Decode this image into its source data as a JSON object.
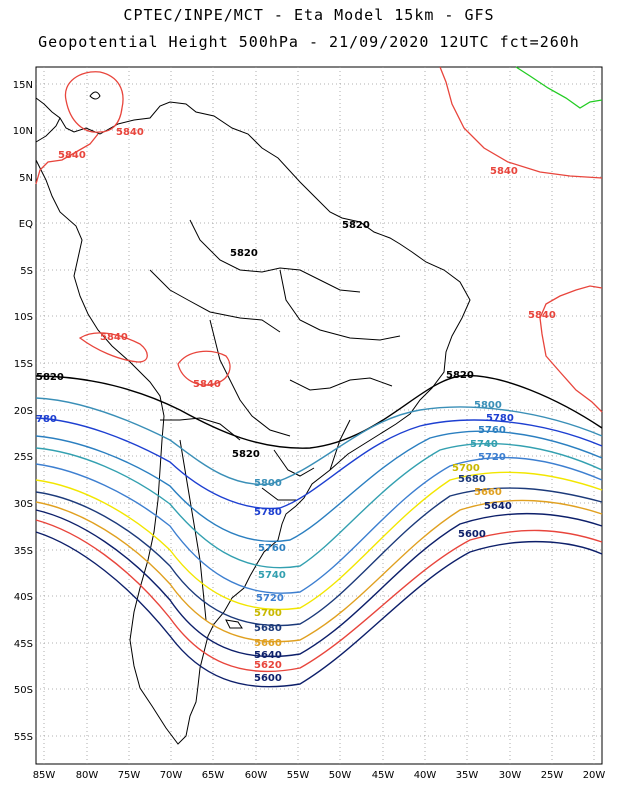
{
  "header": {
    "line1": "CPTEC/INPE/MCT -  Eta Model 15km - GFS",
    "line2": "Geopotential Height 500hPa - 21/09/2020 12UTC fct=260h"
  },
  "axes": {
    "lat_labels": [
      "15N",
      "10N",
      "5N",
      "EQ",
      "5S",
      "10S",
      "15S",
      "20S",
      "25S",
      "30S",
      "35S",
      "40S",
      "45S",
      "50S",
      "55S"
    ],
    "lon_labels": [
      "85W",
      "80W",
      "75W",
      "70W",
      "65W",
      "60W",
      "55W",
      "50W",
      "45W",
      "40W",
      "35W",
      "30W",
      "25W",
      "20W"
    ]
  },
  "colors": {
    "c5840": "#e8453c",
    "c5820": "#000000",
    "c5800": "#3a8fb7",
    "c5780": "#1d3fd1",
    "c5760": "#2b7fc0",
    "c5740": "#33a0b0",
    "c5720": "#3d7fd0",
    "c5700": "#f2e600",
    "c5680": "#1c3a7a",
    "c5660": "#e0a020",
    "c5640": "#0d1f6a",
    "c5620": "#e8453c",
    "c5600": "#0d1f6a",
    "green": "#22cc22"
  },
  "contour_labels": [
    {
      "text": "5840",
      "color": "#e8453c"
    },
    {
      "text": "5840",
      "color": "#e8453c"
    },
    {
      "text": "5840",
      "color": "#e8453c"
    },
    {
      "text": "5840",
      "color": "#e8453c"
    },
    {
      "text": "5840",
      "color": "#e8453c"
    },
    {
      "text": "5840",
      "color": "#e8453c"
    },
    {
      "text": "5820",
      "color": "#000000"
    },
    {
      "text": "5820",
      "color": "#000000"
    },
    {
      "text": "5820",
      "color": "#000000"
    },
    {
      "text": "5820",
      "color": "#000000"
    },
    {
      "text": "5820",
      "color": "#000000"
    },
    {
      "text": "5800",
      "color": "#3a8fb7"
    },
    {
      "text": "5780",
      "color": "#1d3fd1"
    },
    {
      "text": "5760",
      "color": "#2b7fc0"
    },
    {
      "text": "5740",
      "color": "#33a0b0"
    },
    {
      "text": "5720",
      "color": "#3d7fd0"
    },
    {
      "text": "5700",
      "color": "#c8b800"
    },
    {
      "text": "5680",
      "color": "#1c3a7a"
    },
    {
      "text": "5660",
      "color": "#e0a020"
    },
    {
      "text": "5640",
      "color": "#0d1f6a"
    },
    {
      "text": "5600",
      "color": "#0d1f6a"
    },
    {
      "text": "5800",
      "color": "#3a8fb7"
    },
    {
      "text": "5780",
      "color": "#1d3fd1"
    },
    {
      "text": "5760",
      "color": "#2b7fc0"
    },
    {
      "text": "5740",
      "color": "#33a0b0"
    },
    {
      "text": "5720",
      "color": "#3d7fd0"
    },
    {
      "text": "5700",
      "color": "#c8b800"
    },
    {
      "text": "5680",
      "color": "#1c3a7a"
    },
    {
      "text": "5660",
      "color": "#e0a020"
    },
    {
      "text": "5640",
      "color": "#0d1f6a"
    },
    {
      "text": "5620",
      "color": "#e8453c"
    },
    {
      "text": "5600",
      "color": "#0d1f6a"
    },
    {
      "text": "780",
      "color": "#1d3fd1"
    }
  ]
}
